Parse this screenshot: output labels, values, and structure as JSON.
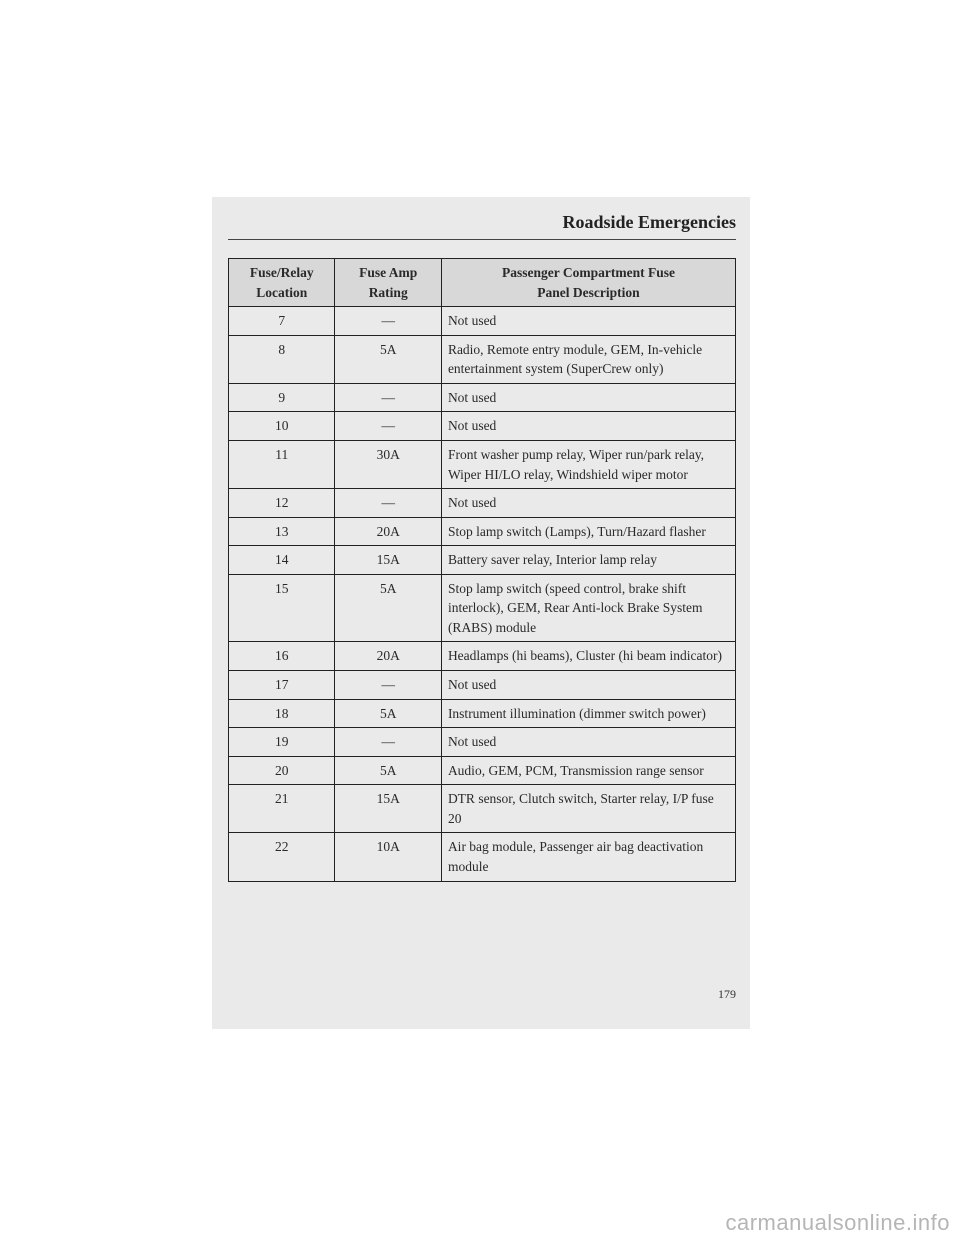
{
  "section_title": "Roadside Emergencies",
  "page_number": "179",
  "watermark": "carmanualsonline.info",
  "table": {
    "headers": {
      "col1_line1": "Fuse/Relay",
      "col1_line2": "Location",
      "col2_line1": "Fuse Amp",
      "col2_line2": "Rating",
      "col3_line1": "Passenger Compartment Fuse",
      "col3_line2": "Panel Description"
    },
    "rows": [
      {
        "loc": "7",
        "amp": "—",
        "desc": "Not used"
      },
      {
        "loc": "8",
        "amp": "5A",
        "desc": "Radio, Remote entry module, GEM, In-vehicle entertainment system (SuperCrew only)"
      },
      {
        "loc": "9",
        "amp": "—",
        "desc": "Not used"
      },
      {
        "loc": "10",
        "amp": "—",
        "desc": "Not used"
      },
      {
        "loc": "11",
        "amp": "30A",
        "desc": "Front washer pump relay, Wiper run/park relay, Wiper HI/LO relay, Windshield wiper motor"
      },
      {
        "loc": "12",
        "amp": "—",
        "desc": "Not used"
      },
      {
        "loc": "13",
        "amp": "20A",
        "desc": "Stop lamp switch (Lamps), Turn/Hazard flasher"
      },
      {
        "loc": "14",
        "amp": "15A",
        "desc": "Battery saver relay, Interior lamp relay"
      },
      {
        "loc": "15",
        "amp": "5A",
        "desc": "Stop lamp switch (speed control, brake shift interlock), GEM, Rear Anti-lock Brake System (RABS) module"
      },
      {
        "loc": "16",
        "amp": "20A",
        "desc": "Headlamps (hi beams), Cluster (hi beam indicator)"
      },
      {
        "loc": "17",
        "amp": "—",
        "desc": "Not used"
      },
      {
        "loc": "18",
        "amp": "5A",
        "desc": "Instrument illumination (dimmer switch power)"
      },
      {
        "loc": "19",
        "amp": "—",
        "desc": "Not used"
      },
      {
        "loc": "20",
        "amp": "5A",
        "desc": "Audio, GEM, PCM, Transmission range sensor"
      },
      {
        "loc": "21",
        "amp": "15A",
        "desc": "DTR sensor, Clutch switch, Starter relay, I/P fuse 20"
      },
      {
        "loc": "22",
        "amp": "10A",
        "desc": "Air bag module, Passenger air bag deactivation module"
      }
    ]
  }
}
